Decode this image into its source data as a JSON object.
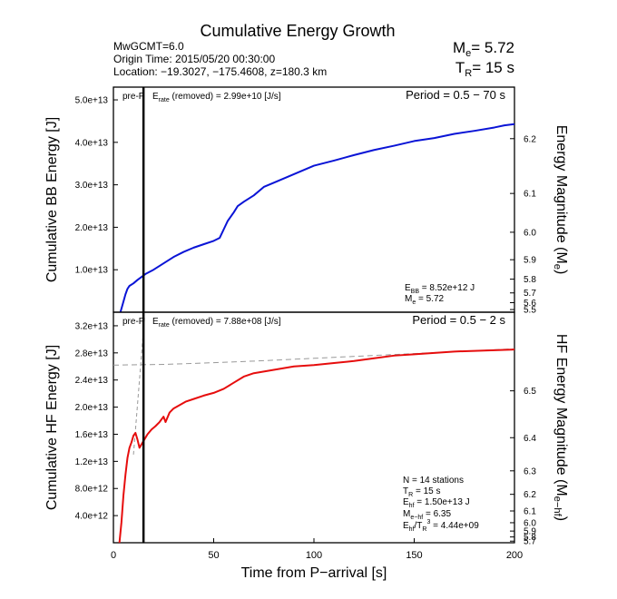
{
  "header": {
    "title": "Cumulative Energy Growth",
    "event_name": "MwGCMT=6.0",
    "origin_time": "Origin Time: 2015/05/20 00:30:00",
    "location": "Location: −19.3027, −175.4608, z=180.3 km",
    "me_label": "M",
    "me_sub": "e",
    "me_value": "= 5.72",
    "tr_label": "T",
    "tr_sub": "R",
    "tr_value": "= 15 s"
  },
  "chart_data": [
    {
      "type": "line",
      "panel": "top",
      "ylabel": "Cumulative BB Energy [J]",
      "ylabel_right": "Energy Magnitude (M",
      "ylabel_right_sub": "e",
      "ylabel_right_close": ")",
      "xlim": [
        0,
        200
      ],
      "ylim": [
        0,
        53000000000000.0
      ],
      "y_ticks": [
        10000000000000.0,
        20000000000000.0,
        30000000000000.0,
        40000000000000.0,
        50000000000000.0
      ],
      "y_tick_labels": [
        "1.0e+13",
        "2.0e+13",
        "3.0e+13",
        "4.0e+13",
        "5.0e+13"
      ],
      "right_ticks": [
        "5.5",
        "5.6",
        "5.7",
        "5.8",
        "5.9",
        "6.0",
        "6.1",
        "6.2"
      ],
      "right_tick_values": [
        5.5,
        5.6,
        5.7,
        5.8,
        5.9,
        6.0,
        6.1,
        6.2
      ],
      "pre_label": "pre-P",
      "erate_label": "E",
      "erate_sub": "rate",
      "erate_text": " (removed) = 2.99e+10 [J/s]",
      "period": "Period = 0.5 − 70 s",
      "color": "#0a14d6",
      "vline_x": 15,
      "series": [
        {
          "x": [
            3.5,
            5,
            6,
            7,
            8,
            10,
            12,
            14,
            16,
            20,
            25,
            30,
            35,
            40,
            45,
            50,
            53,
            55,
            57,
            60,
            62,
            65,
            70,
            75,
            80,
            90,
            100,
            110,
            120,
            130,
            140,
            150,
            160,
            170,
            180,
            190,
            195,
            200
          ],
          "y": [
            0,
            2500000000000.0,
            4200000000000.0,
            5500000000000.0,
            6200000000000.0,
            6800000000000.0,
            7600000000000.0,
            8300000000000.0,
            9000000000000.0,
            10000000000000.0,
            11500000000000.0,
            13000000000000.0,
            14200000000000.0,
            15200000000000.0,
            16000000000000.0,
            16800000000000.0,
            17500000000000.0,
            19500000000000.0,
            21500000000000.0,
            23500000000000.0,
            25000000000000.0,
            26000000000000.0,
            27500000000000.0,
            29500000000000.0,
            30500000000000.0,
            32500000000000.0,
            34500000000000.0,
            35700000000000.0,
            37000000000000.0,
            38200000000000.0,
            39200000000000.0,
            40300000000000.0,
            41000000000000.0,
            42000000000000.0,
            42700000000000.0,
            43500000000000.0,
            44000000000000.0,
            44300000000000.0
          ]
        }
      ],
      "annotation": {
        "line1_label": "E",
        "line1_sub": "BB",
        "line1_value": " = 8.52e+12 J",
        "line2_label": "M",
        "line2_sub": "e",
        "line2_value": " = 5.72"
      }
    },
    {
      "type": "line",
      "panel": "bottom",
      "ylabel": "Cumulative HF Energy [J]",
      "ylabel_right": "HF Energy Magnitude (M",
      "ylabel_right_sub": "e−hf",
      "ylabel_right_close": ")",
      "xlabel": "Time from P−arrival [s]",
      "xlim": [
        0,
        200
      ],
      "ylim": [
        0,
        34000000000000.0
      ],
      "x_ticks": [
        0,
        50,
        100,
        150,
        200
      ],
      "x_tick_labels": [
        "0",
        "50",
        "100",
        "150",
        "200"
      ],
      "y_ticks": [
        4000000000000.0,
        8000000000000.0,
        12000000000000.0,
        16000000000000.0,
        20000000000000.0,
        24000000000000.0,
        28000000000000.0,
        32000000000000.0
      ],
      "y_tick_labels": [
        "4.0e+12",
        "8.0e+12",
        "1.2e+13",
        "1.6e+13",
        "2.0e+13",
        "2.4e+13",
        "2.8e+13",
        "3.2e+13"
      ],
      "right_ticks": [
        "5.7",
        "5.8",
        "5.9",
        "6.0",
        "6.1",
        "6.2",
        "6.3",
        "6.4",
        "6.5"
      ],
      "right_tick_values": [
        5.7,
        5.8,
        5.9,
        6.0,
        6.1,
        6.2,
        6.3,
        6.4,
        6.5
      ],
      "pre_label": "pre-P",
      "erate_label": "E",
      "erate_sub": "rate",
      "erate_text": " (removed) = 7.88e+08 [J/s]",
      "period": "Period = 0.5 − 2 s",
      "color": "#e60d0d",
      "vline_x": 15,
      "series": [
        {
          "x": [
            3,
            4,
            5,
            6,
            7,
            8,
            9,
            10,
            11,
            12,
            13,
            14,
            15,
            17,
            19,
            21,
            23,
            25,
            26,
            28,
            30,
            33,
            36,
            40,
            45,
            50,
            55,
            60,
            65,
            70,
            80,
            90,
            100,
            110,
            120,
            130,
            140,
            150,
            160,
            170,
            180,
            190,
            200
          ],
          "y": [
            0,
            3000000000000.0,
            7000000000000.0,
            10000000000000.0,
            12500000000000.0,
            14000000000000.0,
            14800000000000.0,
            15800000000000.0,
            16200000000000.0,
            15200000000000.0,
            14000000000000.0,
            14500000000000.0,
            15000000000000.0,
            16000000000000.0,
            16700000000000.0,
            17200000000000.0,
            17800000000000.0,
            18600000000000.0,
            17800000000000.0,
            19200000000000.0,
            19800000000000.0,
            20300000000000.0,
            20800000000000.0,
            21200000000000.0,
            21700000000000.0,
            22100000000000.0,
            22700000000000.0,
            23600000000000.0,
            24500000000000.0,
            25000000000000.0,
            25500000000000.0,
            26000000000000.0,
            26200000000000.0,
            26500000000000.0,
            26800000000000.0,
            27200000000000.0,
            27600000000000.0,
            27800000000000.0,
            28000000000000.0,
            28200000000000.0,
            28300000000000.0,
            28400000000000.0,
            28500000000000.0
          ]
        }
      ],
      "dashed_fit": {
        "x": [
          0,
          25,
          50,
          75,
          100,
          125,
          150,
          175,
          200
        ],
        "y": [
          26200000000000.0,
          26300000000000.0,
          26550000000000.0,
          26850000000000.0,
          27200000000000.0,
          27550000000000.0,
          27900000000000.0,
          28250000000000.0,
          28600000000000.0
        ]
      },
      "annotation": {
        "n_stations": "N = 14 stations",
        "tr_label": "T",
        "tr_sub": "R",
        "tr_value": " = 15  s",
        "ehf_label": "E",
        "ehf_sub": "hf",
        "ehf_value": " = 1.50e+13 J",
        "mehf_label": "M",
        "mehf_sub": "e−hf",
        "mehf_value": " = 6.35",
        "ratio_label": "E",
        "ratio_sub": "hf",
        "ratio_mid": "/T",
        "ratio_sub2": "R",
        "ratio_sup": "3",
        "ratio_value": " =  4.44e+09"
      }
    }
  ]
}
